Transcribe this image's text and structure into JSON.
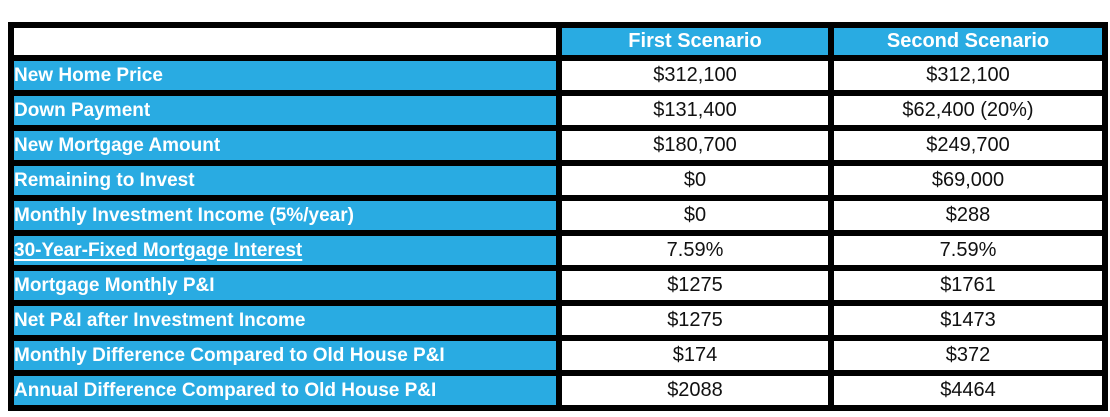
{
  "table": {
    "header": {
      "first": "First Scenario",
      "second": "Second Scenario"
    },
    "rows": [
      {
        "label": "New Home Price",
        "first": "$312,100",
        "second": "$312,100",
        "underline": false
      },
      {
        "label": "Down Payment",
        "first": "$131,400",
        "second": "$62,400 (20%)",
        "underline": false
      },
      {
        "label": "New Mortgage Amount",
        "first": "$180,700",
        "second": "$249,700",
        "underline": false
      },
      {
        "label": "Remaining to Invest",
        "first": "$0",
        "second": "$69,000",
        "underline": false
      },
      {
        "label": "Monthly Investment Income (5%/year)",
        "first": "$0",
        "second": "$288",
        "underline": false
      },
      {
        "label": "30-Year-Fixed Mortgage Interest",
        "first": "7.59%",
        "second": "7.59%",
        "underline": true
      },
      {
        "label": "Mortgage Monthly P&I",
        "first": "$1275",
        "second": "$1761",
        "underline": false
      },
      {
        "label": "Net P&I after Investment Income",
        "first": "$1275",
        "second": "$1473",
        "underline": false
      },
      {
        "label": "Monthly Difference Compared to Old House P&I",
        "first": "$174",
        "second": "$372",
        "underline": false
      },
      {
        "label": "Annual Difference Compared to Old House P&I",
        "first": "$2088",
        "second": "$4464",
        "underline": false
      }
    ],
    "colors": {
      "accent_blue": "#29ABE2",
      "border": "#000000",
      "cell_bg": "#FFFFFF",
      "text_on_blue": "#FFFFFF",
      "text_on_white": "#111111"
    }
  }
}
